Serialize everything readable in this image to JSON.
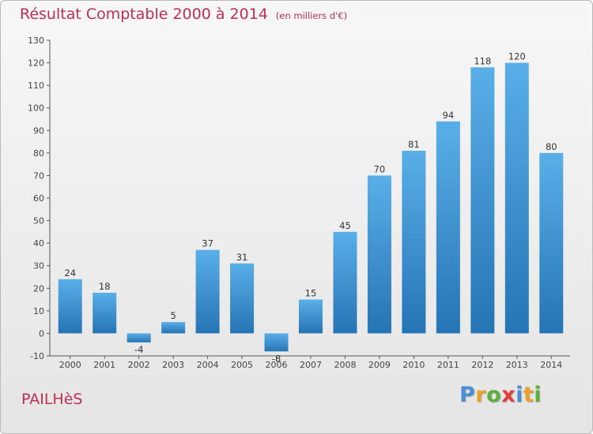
{
  "header": {
    "title": "Résultat Comptable 2000 à 2014",
    "subtitle": "(en milliers d'€)"
  },
  "footer": {
    "commune": "PAILHèS",
    "brand_letters": [
      "P",
      "r",
      "o",
      "x",
      "i",
      "t",
      "i"
    ]
  },
  "colors": {
    "title": "#c22d56",
    "bar_top": "#5aafe8",
    "bar_bottom": "#2574b4",
    "brand": [
      "#4a8fd4",
      "#e8a12a",
      "#5dae3b",
      "#e23c3c",
      "#4a8fd4",
      "#e8a12a",
      "#5dae3b"
    ]
  },
  "chart_data": {
    "type": "bar",
    "title": "Résultat Comptable 2000 à 2014",
    "subtitle": "(en milliers d'€)",
    "categories": [
      "2000",
      "2001",
      "2002",
      "2003",
      "2004",
      "2005",
      "2006",
      "2007",
      "2008",
      "2009",
      "2010",
      "2011",
      "2012",
      "2013",
      "2014"
    ],
    "values": [
      24,
      18,
      -4,
      5,
      37,
      31,
      -8,
      15,
      45,
      70,
      81,
      94,
      118,
      120,
      80
    ],
    "ylim": [
      -10,
      130
    ],
    "yticks": [
      -10,
      0,
      10,
      20,
      30,
      40,
      50,
      60,
      70,
      80,
      90,
      100,
      110,
      120,
      130
    ],
    "xlabel": "",
    "ylabel": "",
    "grid": false,
    "data_labels": true
  }
}
